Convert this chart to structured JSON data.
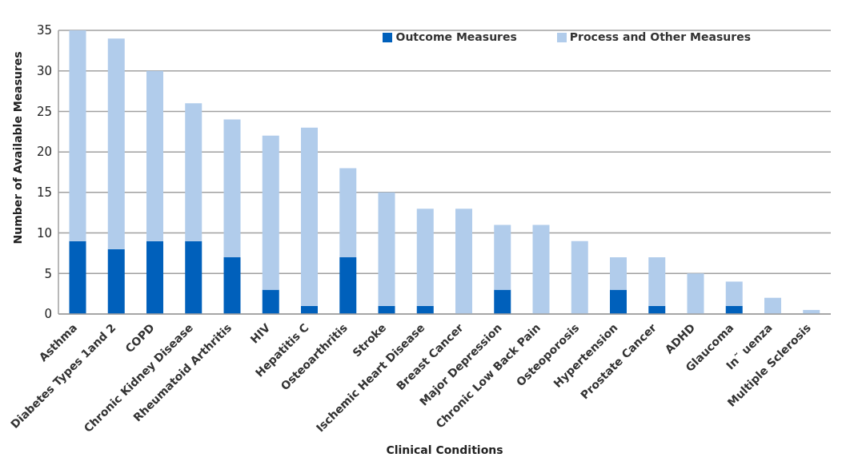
{
  "chart_data": {
    "type": "bar",
    "stacked": true,
    "xlabel": "Clinical Conditions",
    "ylabel": "Number of Available Measures",
    "categories": [
      "Asthma",
      "Diabetes Types 1and 2",
      "COPD",
      "Chronic Kidney Disease",
      "Rheumatoid Arthritis",
      "HIV",
      "Hepatitis C",
      "Osteoarthritis",
      "Stroke",
      "Ischemic Heart Disease",
      "Breast Cancer",
      "Major Depression",
      "Chronic Low Back Pain",
      "Osteoporosis",
      "Hypertension",
      "Prostate Cancer",
      "ADHD",
      "Glaucoma",
      "In˜ uenza",
      "Multiple Sclerosis"
    ],
    "series": [
      {
        "name": "Outcome Measures",
        "color": "#0060bb",
        "values": [
          9,
          8,
          9,
          9,
          7,
          3,
          1,
          7,
          1,
          1,
          0,
          3,
          0,
          0,
          3,
          1,
          0,
          1,
          0,
          0
        ]
      },
      {
        "name": "Process and Other Measures",
        "color": "#b1cceb",
        "values": [
          26,
          26,
          21,
          17,
          17,
          19,
          22,
          11,
          14,
          12,
          13,
          8,
          11,
          9,
          4,
          6,
          5,
          3,
          2,
          0.5
        ]
      }
    ],
    "ylim": [
      0,
      35
    ],
    "yticks": [
      0,
      5,
      10,
      15,
      20,
      25,
      30,
      35
    ],
    "grid": "y",
    "legend": "top right"
  }
}
